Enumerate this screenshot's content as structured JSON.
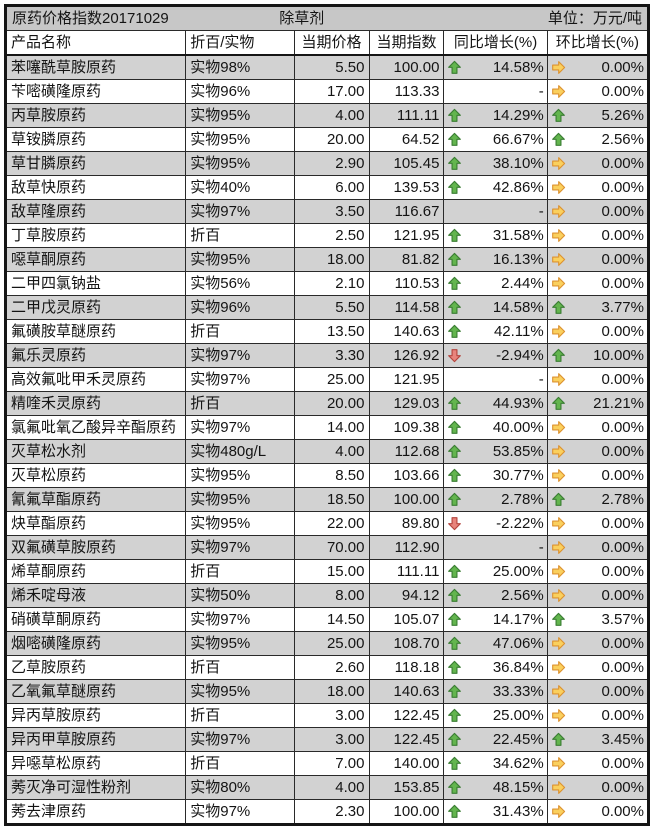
{
  "colors": {
    "stripe_gray": "#d2d2d2",
    "title_gray": "#c7c7c7",
    "up_fill": "#63b54e",
    "up_stroke": "#3a7d33",
    "down_fill": "#e8847c",
    "down_stroke": "#b4453e",
    "flat_fill": "#fad05e",
    "flat_stroke": "#dd9330",
    "border": "#151515"
  },
  "chart_data": {
    "type": "table",
    "title": "原药价格指数20171029",
    "category": "除草剂",
    "unit": "单位：万元/吨",
    "columns": [
      "产品名称",
      "折百/实物",
      "当期价格",
      "当期指数",
      "同比增长(%)",
      "环比增长(%)"
    ],
    "rows": [
      {
        "name": "苯噻酰草胺原药",
        "spec": "实物98%",
        "price": "5.50",
        "index": "100.00",
        "yoy": "14.58%",
        "yoy_trend": "up",
        "mom": "0.00%",
        "mom_trend": "flat"
      },
      {
        "name": "苄嘧磺隆原药",
        "spec": "实物96%",
        "price": "17.00",
        "index": "113.33",
        "yoy": "-",
        "yoy_trend": "none",
        "mom": "0.00%",
        "mom_trend": "flat"
      },
      {
        "name": "丙草胺原药",
        "spec": "实物95%",
        "price": "4.00",
        "index": "111.11",
        "yoy": "14.29%",
        "yoy_trend": "up",
        "mom": "5.26%",
        "mom_trend": "up"
      },
      {
        "name": "草铵膦原药",
        "spec": "实物95%",
        "price": "20.00",
        "index": "64.52",
        "yoy": "66.67%",
        "yoy_trend": "up",
        "mom": "2.56%",
        "mom_trend": "up"
      },
      {
        "name": "草甘膦原药",
        "spec": "实物95%",
        "price": "2.90",
        "index": "105.45",
        "yoy": "38.10%",
        "yoy_trend": "up",
        "mom": "0.00%",
        "mom_trend": "flat"
      },
      {
        "name": "敌草快原药",
        "spec": "实物40%",
        "price": "6.00",
        "index": "139.53",
        "yoy": "42.86%",
        "yoy_trend": "up",
        "mom": "0.00%",
        "mom_trend": "flat"
      },
      {
        "name": "敌草隆原药",
        "spec": "实物97%",
        "price": "3.50",
        "index": "116.67",
        "yoy": "-",
        "yoy_trend": "none",
        "mom": "0.00%",
        "mom_trend": "flat"
      },
      {
        "name": "丁草胺原药",
        "spec": "折百",
        "price": "2.50",
        "index": "121.95",
        "yoy": "31.58%",
        "yoy_trend": "up",
        "mom": "0.00%",
        "mom_trend": "flat"
      },
      {
        "name": "噁草酮原药",
        "spec": "实物95%",
        "price": "18.00",
        "index": "81.82",
        "yoy": "16.13%",
        "yoy_trend": "up",
        "mom": "0.00%",
        "mom_trend": "flat"
      },
      {
        "name": "二甲四氯钠盐",
        "spec": "实物56%",
        "price": "2.10",
        "index": "110.53",
        "yoy": "2.44%",
        "yoy_trend": "up",
        "mom": "0.00%",
        "mom_trend": "flat"
      },
      {
        "name": "二甲戊灵原药",
        "spec": "实物96%",
        "price": "5.50",
        "index": "114.58",
        "yoy": "14.58%",
        "yoy_trend": "up",
        "mom": "3.77%",
        "mom_trend": "up"
      },
      {
        "name": "氟磺胺草醚原药",
        "spec": "折百",
        "price": "13.50",
        "index": "140.63",
        "yoy": "42.11%",
        "yoy_trend": "up",
        "mom": "0.00%",
        "mom_trend": "flat"
      },
      {
        "name": "氟乐灵原药",
        "spec": "实物97%",
        "price": "3.30",
        "index": "126.92",
        "yoy": "-2.94%",
        "yoy_trend": "down",
        "mom": "10.00%",
        "mom_trend": "up"
      },
      {
        "name": "高效氟吡甲禾灵原药",
        "spec": "实物97%",
        "price": "25.00",
        "index": "121.95",
        "yoy": "-",
        "yoy_trend": "none",
        "mom": "0.00%",
        "mom_trend": "flat"
      },
      {
        "name": "精喹禾灵原药",
        "spec": "折百",
        "price": "20.00",
        "index": "129.03",
        "yoy": "44.93%",
        "yoy_trend": "up",
        "mom": "21.21%",
        "mom_trend": "up"
      },
      {
        "name": "氯氟吡氧乙酸异辛酯原药",
        "spec": "实物97%",
        "price": "14.00",
        "index": "109.38",
        "yoy": "40.00%",
        "yoy_trend": "up",
        "mom": "0.00%",
        "mom_trend": "flat"
      },
      {
        "name": "灭草松水剂",
        "spec": "实物480g/L",
        "price": "4.00",
        "index": "112.68",
        "yoy": "53.85%",
        "yoy_trend": "up",
        "mom": "0.00%",
        "mom_trend": "flat"
      },
      {
        "name": "灭草松原药",
        "spec": "实物95%",
        "price": "8.50",
        "index": "103.66",
        "yoy": "30.77%",
        "yoy_trend": "up",
        "mom": "0.00%",
        "mom_trend": "flat"
      },
      {
        "name": "氰氟草酯原药",
        "spec": "实物95%",
        "price": "18.50",
        "index": "100.00",
        "yoy": "2.78%",
        "yoy_trend": "up",
        "mom": "2.78%",
        "mom_trend": "up"
      },
      {
        "name": "炔草酯原药",
        "spec": "实物95%",
        "price": "22.00",
        "index": "89.80",
        "yoy": "-2.22%",
        "yoy_trend": "down",
        "mom": "0.00%",
        "mom_trend": "flat"
      },
      {
        "name": "双氟磺草胺原药",
        "spec": "实物97%",
        "price": "70.00",
        "index": "112.90",
        "yoy": "-",
        "yoy_trend": "none",
        "mom": "0.00%",
        "mom_trend": "flat"
      },
      {
        "name": "烯草酮原药",
        "spec": "折百",
        "price": "15.00",
        "index": "111.11",
        "yoy": "25.00%",
        "yoy_trend": "up",
        "mom": "0.00%",
        "mom_trend": "flat"
      },
      {
        "name": "烯禾啶母液",
        "spec": "实物50%",
        "price": "8.00",
        "index": "94.12",
        "yoy": "2.56%",
        "yoy_trend": "up",
        "mom": "0.00%",
        "mom_trend": "flat"
      },
      {
        "name": "硝磺草酮原药",
        "spec": "实物97%",
        "price": "14.50",
        "index": "105.07",
        "yoy": "14.17%",
        "yoy_trend": "up",
        "mom": "3.57%",
        "mom_trend": "up"
      },
      {
        "name": "烟嘧磺隆原药",
        "spec": "实物95%",
        "price": "25.00",
        "index": "108.70",
        "yoy": "47.06%",
        "yoy_trend": "up",
        "mom": "0.00%",
        "mom_trend": "flat"
      },
      {
        "name": "乙草胺原药",
        "spec": "折百",
        "price": "2.60",
        "index": "118.18",
        "yoy": "36.84%",
        "yoy_trend": "up",
        "mom": "0.00%",
        "mom_trend": "flat"
      },
      {
        "name": "乙氧氟草醚原药",
        "spec": "实物95%",
        "price": "18.00",
        "index": "140.63",
        "yoy": "33.33%",
        "yoy_trend": "up",
        "mom": "0.00%",
        "mom_trend": "flat"
      },
      {
        "name": "异丙草胺原药",
        "spec": "折百",
        "price": "3.00",
        "index": "122.45",
        "yoy": "25.00%",
        "yoy_trend": "up",
        "mom": "0.00%",
        "mom_trend": "flat"
      },
      {
        "name": "异丙甲草胺原药",
        "spec": "实物97%",
        "price": "3.00",
        "index": "122.45",
        "yoy": "22.45%",
        "yoy_trend": "up",
        "mom": "3.45%",
        "mom_trend": "up"
      },
      {
        "name": "异噁草松原药",
        "spec": "折百",
        "price": "7.00",
        "index": "140.00",
        "yoy": "34.62%",
        "yoy_trend": "up",
        "mom": "0.00%",
        "mom_trend": "flat"
      },
      {
        "name": "莠灭净可湿性粉剂",
        "spec": "实物80%",
        "price": "4.00",
        "index": "153.85",
        "yoy": "48.15%",
        "yoy_trend": "up",
        "mom": "0.00%",
        "mom_trend": "flat"
      },
      {
        "name": "莠去津原药",
        "spec": "实物97%",
        "price": "2.30",
        "index": "100.00",
        "yoy": "31.43%",
        "yoy_trend": "up",
        "mom": "0.00%",
        "mom_trend": "flat"
      }
    ]
  }
}
